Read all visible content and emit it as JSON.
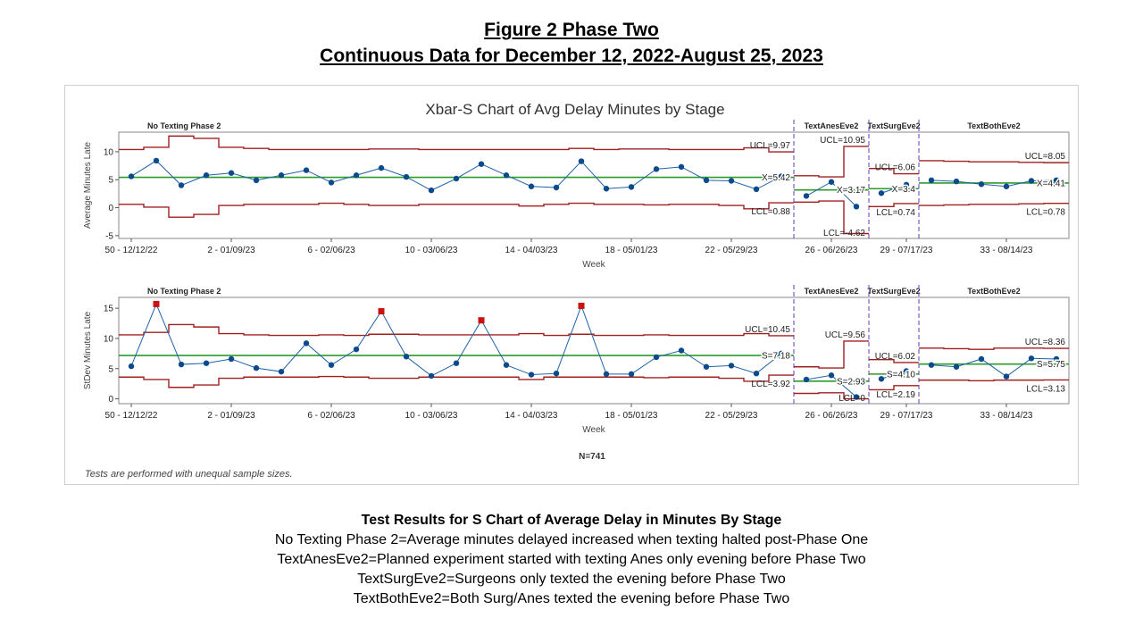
{
  "figure": {
    "title_line1": "Figure 2   Phase Two",
    "title_line2": "Continuous Data for December 12, 2022-August 25, 2023"
  },
  "chart_data": {
    "type": "line",
    "title": "Xbar-S Chart of Avg Delay Minutes by Stage",
    "footnote": "Tests are performed with unequal sample sizes.",
    "n_label": "N=741",
    "xlabel": "Week",
    "x_tick_labels": [
      "50 - 12/12/22",
      "2 - 01/09/23",
      "6 - 02/06/23",
      "10 - 03/06/23",
      "14 - 04/03/23",
      "18 - 05/01/23",
      "22 - 05/29/23",
      "26 - 06/26/23",
      "29 - 07/17/23",
      "33 - 08/14/23"
    ],
    "x_tick_index": [
      0,
      4,
      8,
      12,
      16,
      20,
      24,
      28,
      31,
      35
    ],
    "stages": [
      {
        "name": "No Texting Phase 2",
        "from": 0,
        "to": 26
      },
      {
        "name": "TextAnesEve2",
        "from": 27,
        "to": 29
      },
      {
        "name": "TextSurgEve2",
        "from": 30,
        "to": 31
      },
      {
        "name": "TextBothEve2",
        "from": 32,
        "to": 37
      }
    ],
    "xbar": {
      "ylabel": "Average Minutes Late",
      "ylim": [
        -5.5,
        13.5
      ],
      "yticks": [
        -5,
        0,
        5,
        10
      ],
      "values": [
        5.6,
        8.4,
        4.0,
        5.8,
        6.2,
        4.9,
        5.8,
        6.7,
        4.5,
        5.8,
        7.1,
        5.5,
        3.1,
        5.2,
        7.8,
        5.8,
        3.8,
        3.6,
        8.3,
        3.4,
        3.7,
        6.9,
        7.3,
        4.9,
        4.8,
        3.3,
        5.6,
        2.1,
        4.6,
        0.2,
        2.6,
        4.1,
        4.9,
        4.7,
        4.2,
        3.8,
        4.8,
        4.9
      ],
      "center": [
        {
          "stage": 0,
          "value": 5.42,
          "label": "X=5.42"
        },
        {
          "stage": 1,
          "value": 3.17,
          "label": "X=3.17"
        },
        {
          "stage": 2,
          "value": 3.4,
          "label": "X=3.4"
        },
        {
          "stage": 3,
          "value": 4.41,
          "label": "X=4.41"
        }
      ],
      "ucl": [
        10.4,
        10.8,
        12.8,
        12.4,
        10.8,
        10.6,
        10.4,
        10.4,
        10.4,
        10.4,
        10.5,
        10.5,
        10.4,
        10.4,
        10.4,
        10.4,
        10.4,
        10.4,
        10.6,
        10.4,
        10.5,
        10.5,
        10.4,
        10.4,
        10.4,
        10.7,
        9.97,
        5.7,
        5.5,
        10.95,
        7.0,
        6.06,
        8.4,
        8.3,
        8.2,
        8.2,
        8.1,
        8.05
      ],
      "lcl": [
        0.6,
        0.1,
        -1.7,
        -1.2,
        0.4,
        0.6,
        0.6,
        0.6,
        0.8,
        0.6,
        0.4,
        0.4,
        0.6,
        0.6,
        0.6,
        0.6,
        0.3,
        0.6,
        0.8,
        0.6,
        0.6,
        0.5,
        0.6,
        0.6,
        0.4,
        -0.2,
        0.88,
        1.0,
        1.2,
        -4.62,
        0.2,
        0.74,
        0.4,
        0.5,
        0.6,
        0.6,
        0.7,
        0.78
      ],
      "ucl_labels": [
        "UCL=9.97",
        "UCL=10.95",
        "UCL=6.06",
        "UCL=8.05"
      ],
      "lcl_labels": [
        "LCL=0.88",
        "LCL=-4.62",
        "LCL=0.74",
        "LCL=0.78"
      ]
    },
    "s": {
      "ylabel": "StDev Minutes Late",
      "ylim": [
        -0.8,
        16.8
      ],
      "yticks": [
        0,
        5,
        10,
        15
      ],
      "values": [
        5.4,
        15.7,
        5.7,
        5.9,
        6.6,
        5.1,
        4.5,
        9.2,
        5.6,
        8.2,
        14.5,
        7.0,
        3.8,
        5.9,
        13.0,
        5.6,
        4.0,
        4.2,
        15.4,
        4.1,
        4.1,
        6.9,
        8.0,
        5.3,
        5.5,
        4.2,
        7.5,
        3.2,
        3.9,
        0.3,
        3.3,
        4.6,
        5.6,
        5.3,
        6.6,
        3.7,
        6.7,
        6.6
      ],
      "flagged": [
        1,
        10,
        14,
        18
      ],
      "center": [
        {
          "stage": 0,
          "value": 7.18,
          "label": "S=7.18"
        },
        {
          "stage": 1,
          "value": 2.93,
          "label": "S=2.93"
        },
        {
          "stage": 2,
          "value": 4.1,
          "label": "S=4.10"
        },
        {
          "stage": 3,
          "value": 5.75,
          "label": "S=5.75"
        }
      ],
      "ucl": [
        10.6,
        11.0,
        12.3,
        11.9,
        10.8,
        10.6,
        10.5,
        10.5,
        10.6,
        10.5,
        10.7,
        10.7,
        10.6,
        10.6,
        10.6,
        10.6,
        10.8,
        10.5,
        10.7,
        10.5,
        10.5,
        10.6,
        10.5,
        10.5,
        10.5,
        10.8,
        10.45,
        5.3,
        5.1,
        9.56,
        6.5,
        6.02,
        8.4,
        8.3,
        8.2,
        8.4,
        8.4,
        8.36
      ],
      "lcl": [
        3.6,
        3.2,
        1.9,
        2.3,
        3.4,
        3.6,
        3.6,
        3.6,
        3.7,
        3.6,
        3.4,
        3.4,
        3.6,
        3.6,
        3.6,
        3.6,
        3.2,
        3.6,
        3.6,
        3.6,
        3.6,
        3.5,
        3.6,
        3.6,
        3.4,
        2.9,
        3.92,
        0.9,
        1.0,
        0,
        1.5,
        2.19,
        3.1,
        3.1,
        3.0,
        3.1,
        3.1,
        3.13
      ],
      "ucl_labels": [
        "UCL=10.45",
        "UCL=9.56",
        "UCL=6.02",
        "UCL=8.36"
      ],
      "lcl_labels": [
        "LCL=3.92",
        "LCL=0",
        "LCL=2.19",
        "LCL=3.13"
      ]
    },
    "colors": {
      "series": "#1f62a8",
      "marker": "#0b4a8b",
      "center": "#2e9a2e",
      "limits": "#a02020",
      "flagged": "#cc1111",
      "divider": "#7a5cc6"
    }
  },
  "notes": {
    "heading": "Test Results for S Chart of Average Delay in Minutes By Stage",
    "lines": [
      "No Texting Phase 2=Average minutes delayed increased when texting halted post-Phase One",
      "TextAnesEve2=Planned experiment started with texting Anes only evening before Phase Two",
      "TextSurgEve2=Surgeons only texted the evening before Phase Two",
      "TextBothEve2=Both Surg/Anes texted the evening before Phase Two"
    ]
  }
}
